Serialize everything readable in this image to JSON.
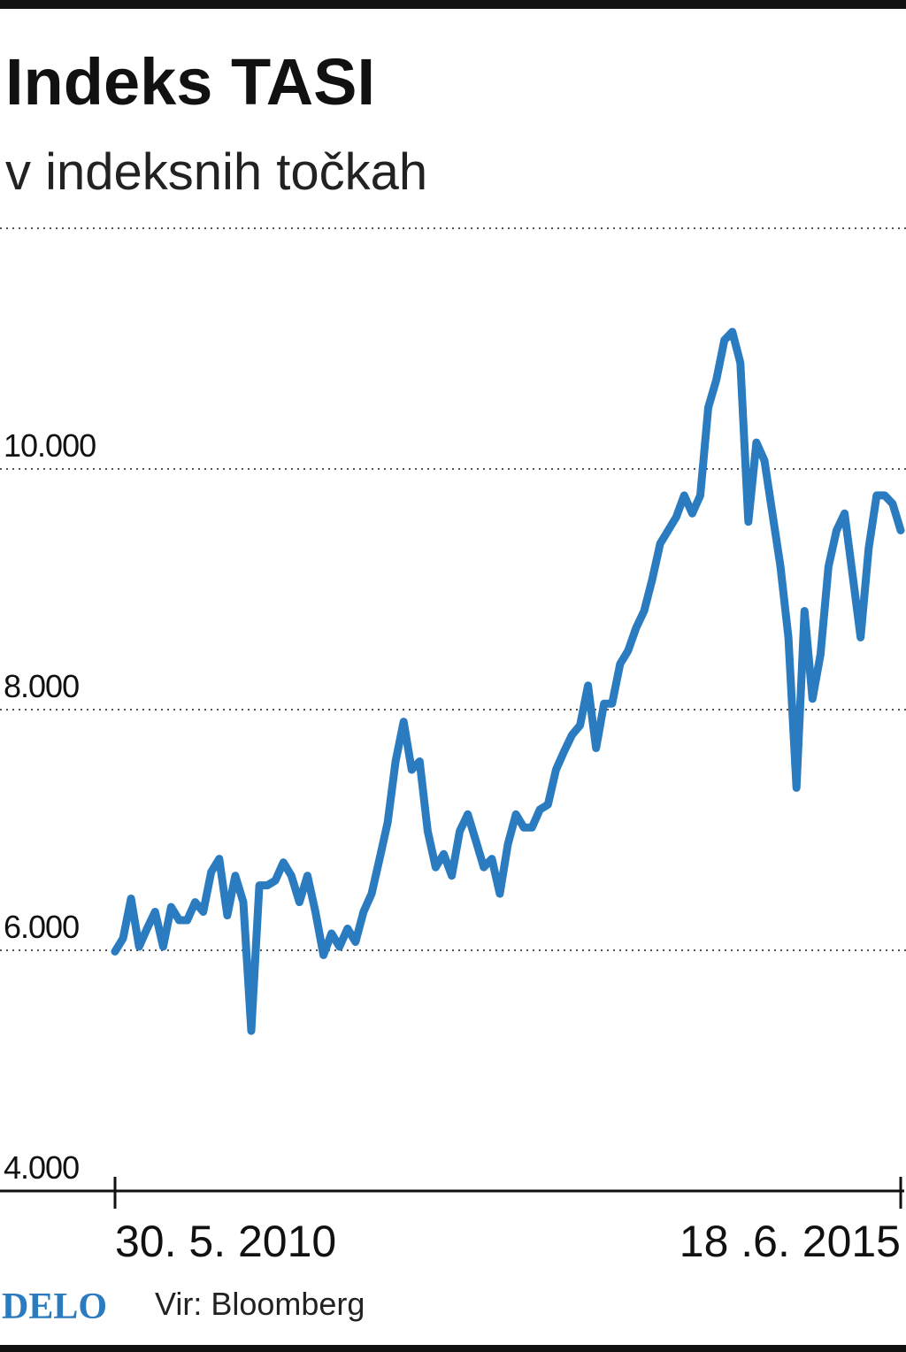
{
  "chart_data": {
    "type": "line",
    "title": "Indeks TASI",
    "subtitle": "v indeksnih točkah",
    "categories": [
      "30. 5. 2010",
      null,
      null,
      null,
      null,
      null,
      null,
      null,
      null,
      null,
      null,
      null,
      null,
      null,
      null,
      null,
      null,
      null,
      null,
      null,
      null,
      null,
      null,
      null,
      null,
      null,
      null,
      null,
      null,
      null,
      null,
      null,
      null,
      null,
      null,
      null,
      null,
      null,
      null,
      null,
      null,
      null,
      null,
      null,
      null,
      null,
      null,
      null,
      null,
      null,
      null,
      null,
      null,
      null,
      null,
      null,
      null,
      null,
      null,
      null,
      null,
      null,
      null,
      null,
      null,
      null,
      null,
      null,
      null,
      null,
      null,
      null,
      null,
      null,
      null,
      null,
      null,
      null,
      null,
      null,
      null,
      null,
      null,
      null,
      null,
      null,
      null,
      null,
      null,
      null,
      null,
      null,
      null,
      null,
      null,
      null,
      null,
      null,
      "18 .6. 2015"
    ],
    "series": [
      {
        "color": "#2a7bbf",
        "values": [
          5990,
          6100,
          6430,
          6030,
          6180,
          6320,
          6030,
          6360,
          6250,
          6250,
          6400,
          6320,
          6650,
          6760,
          6290,
          6620,
          6400,
          5330,
          6540,
          6540,
          6580,
          6730,
          6620,
          6400,
          6620,
          6320,
          5960,
          6140,
          6030,
          6180,
          6070,
          6320,
          6470,
          6760,
          7060,
          7570,
          7900,
          7500,
          7570,
          6990,
          6690,
          6800,
          6620,
          6990,
          7130,
          6910,
          6690,
          6760,
          6470,
          6880,
          7130,
          7020,
          7020,
          7170,
          7210,
          7500,
          7650,
          7790,
          7870,
          8200,
          7680,
          8050,
          8050,
          8380,
          8490,
          8680,
          8820,
          9080,
          9380,
          9490,
          9600,
          9780,
          9630,
          9780,
          10510,
          10740,
          11070,
          11140,
          10880,
          9560,
          10220,
          10070,
          9630,
          9190,
          8600,
          7350,
          8820,
          8090,
          8460,
          9190,
          9490,
          9630,
          9120,
          8600,
          9340,
          9780,
          9780,
          9710,
          9490
        ]
      }
    ],
    "ylim": [
      4000,
      12000
    ],
    "yticks": [
      {
        "value": 4000,
        "label": "4.000"
      },
      {
        "value": 6000,
        "label": "6.000"
      },
      {
        "value": 8000,
        "label": "8.000"
      },
      {
        "value": 10000,
        "label": "10.000"
      }
    ],
    "grid": true,
    "publisher": "DELO",
    "source": "Vir: Bloomberg"
  }
}
